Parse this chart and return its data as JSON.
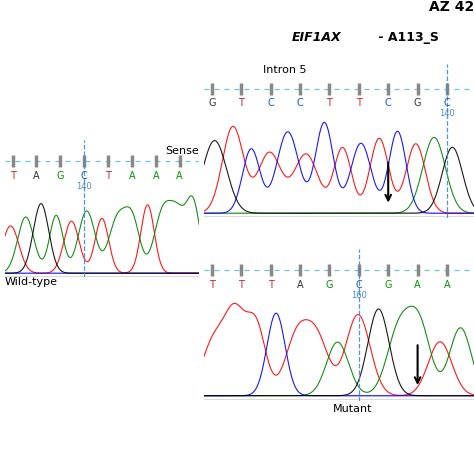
{
  "title1": "AZ 42",
  "title2_italic": "EIF1AX",
  "title2_normal": " - A113_S",
  "bg_color": "#ffffff",
  "wt_label": "Wild-type",
  "mutant_label": "Mutant",
  "sense_label": "Sense",
  "intron5_label": "Intron 5",
  "wt_seq": [
    "T",
    "A",
    "G",
    "C",
    "T",
    "A",
    "A",
    "A"
  ],
  "wt_seq_colors": [
    "#cc2222",
    "#333333",
    "#009900",
    "#1155cc",
    "#cc2222",
    "#009900",
    "#009900",
    "#009900"
  ],
  "wt_pos_label": "140",
  "wt_dashed_idx": 3,
  "intron5_seq": [
    "G",
    "T",
    "C",
    "C",
    "T",
    "T",
    "C",
    "G",
    "C"
  ],
  "intron5_seq_colors": [
    "#333333",
    "#cc2222",
    "#1155cc",
    "#1155cc",
    "#cc2222",
    "#cc2222",
    "#1155cc",
    "#333333",
    "#1155cc"
  ],
  "intron5_pos_label": "140",
  "intron5_dashed_idx": 8,
  "mutant_seq": [
    "T",
    "T",
    "T",
    "A",
    "G",
    "C",
    "G",
    "A",
    "A"
  ],
  "mutant_seq_colors": [
    "#cc2222",
    "#cc2222",
    "#cc2222",
    "#333333",
    "#009900",
    "#1155cc",
    "#009900",
    "#009900",
    "#009900"
  ],
  "mutant_pos_label": "160",
  "mutant_dashed_idx": 5,
  "dashed_line_color": "#4488cc",
  "tick_color": "#888888",
  "seq_track_color": "#55bbcc",
  "wt_chrom_colors": [
    "red",
    "green",
    "black",
    "green",
    "red",
    "green",
    "red",
    "green",
    "green",
    "red",
    "green",
    "green",
    "green"
  ],
  "intron_chrom_colors": [
    "black",
    "red",
    "blue",
    "red",
    "blue",
    "red",
    "blue",
    "red",
    "blue",
    "red",
    "blue",
    "red",
    "green",
    "black"
  ],
  "mutant_chrom_colors": [
    "red",
    "red",
    "red",
    "blue",
    "red",
    "red",
    "green",
    "red",
    "black",
    "green",
    "green",
    "red",
    "green"
  ]
}
